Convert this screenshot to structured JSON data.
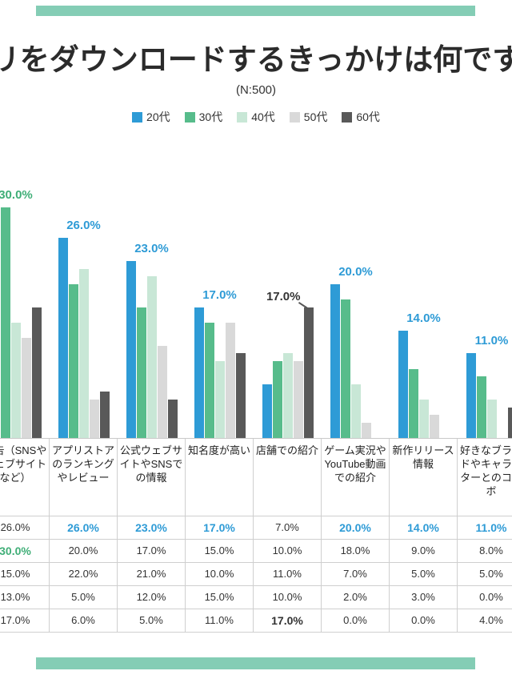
{
  "theme": {
    "accent": "#84CDB5",
    "axis_line": "#c9c9c9",
    "highlight_blue": "#2E9BD6",
    "highlight_green": "#3FAE77",
    "highlight_dark": "#333333"
  },
  "header": {
    "title": "アプリをダウンロードするきっかけは何ですか？",
    "sample_size": "(N:500)"
  },
  "legend": [
    {
      "label": "20代",
      "color": "#2E9BD6"
    },
    {
      "label": "30代",
      "color": "#57BC8B"
    },
    {
      "label": "40代",
      "color": "#C8E7D6"
    },
    {
      "label": "50代",
      "color": "#D9D9D9"
    },
    {
      "label": "60代",
      "color": "#595959"
    }
  ],
  "chart_data": {
    "type": "bar",
    "title": "アプリをダウンロードするきっかけは何ですか？",
    "subtitle": "(N:500)",
    "unit": "%",
    "ylim": [
      0,
      32
    ],
    "grid": false,
    "legend_position": "top",
    "categories": [
      "広告（SNSやウェブサイトなど）",
      "アプリストアのランキングやレビュー",
      "公式ウェブサイトやSNSでの情報",
      "知名度が高い",
      "店舗での紹介",
      "ゲーム実況やYouTube動画での紹介",
      "新作リリース情報",
      "好きなブランドやキャラクターとのコラボ"
    ],
    "series": [
      {
        "name": "20代",
        "color": "#2E9BD6",
        "values": [
          26.0,
          26.0,
          23.0,
          17.0,
          7.0,
          20.0,
          14.0,
          11.0
        ]
      },
      {
        "name": "30代",
        "color": "#57BC8B",
        "values": [
          30.0,
          20.0,
          17.0,
          15.0,
          10.0,
          18.0,
          9.0,
          8.0
        ]
      },
      {
        "name": "40代",
        "color": "#C8E7D6",
        "values": [
          15.0,
          22.0,
          21.0,
          10.0,
          11.0,
          7.0,
          5.0,
          5.0
        ]
      },
      {
        "name": "50代",
        "color": "#D9D9D9",
        "values": [
          13.0,
          5.0,
          12.0,
          15.0,
          10.0,
          2.0,
          3.0,
          0.0
        ]
      },
      {
        "name": "60代",
        "color": "#595959",
        "values": [
          17.0,
          6.0,
          5.0,
          11.0,
          17.0,
          0.0,
          0.0,
          4.0
        ]
      }
    ],
    "highlights": [
      {
        "category": 0,
        "series": 1,
        "label": "30.0%",
        "color": "#3FAE77"
      },
      {
        "category": 1,
        "series": 0,
        "label": "26.0%",
        "color": "#2E9BD6"
      },
      {
        "category": 2,
        "series": 0,
        "label": "23.0%",
        "color": "#2E9BD6"
      },
      {
        "category": 3,
        "series": 0,
        "label": "17.0%",
        "color": "#2E9BD6"
      },
      {
        "category": 4,
        "series": 4,
        "label": "17.0%",
        "color": "#333333",
        "callout": true
      },
      {
        "category": 5,
        "series": 0,
        "label": "20.0%",
        "color": "#2E9BD6"
      },
      {
        "category": 6,
        "series": 0,
        "label": "14.0%",
        "color": "#2E9BD6"
      },
      {
        "category": 7,
        "series": 0,
        "label": "11.0%",
        "color": "#2E9BD6"
      }
    ]
  }
}
